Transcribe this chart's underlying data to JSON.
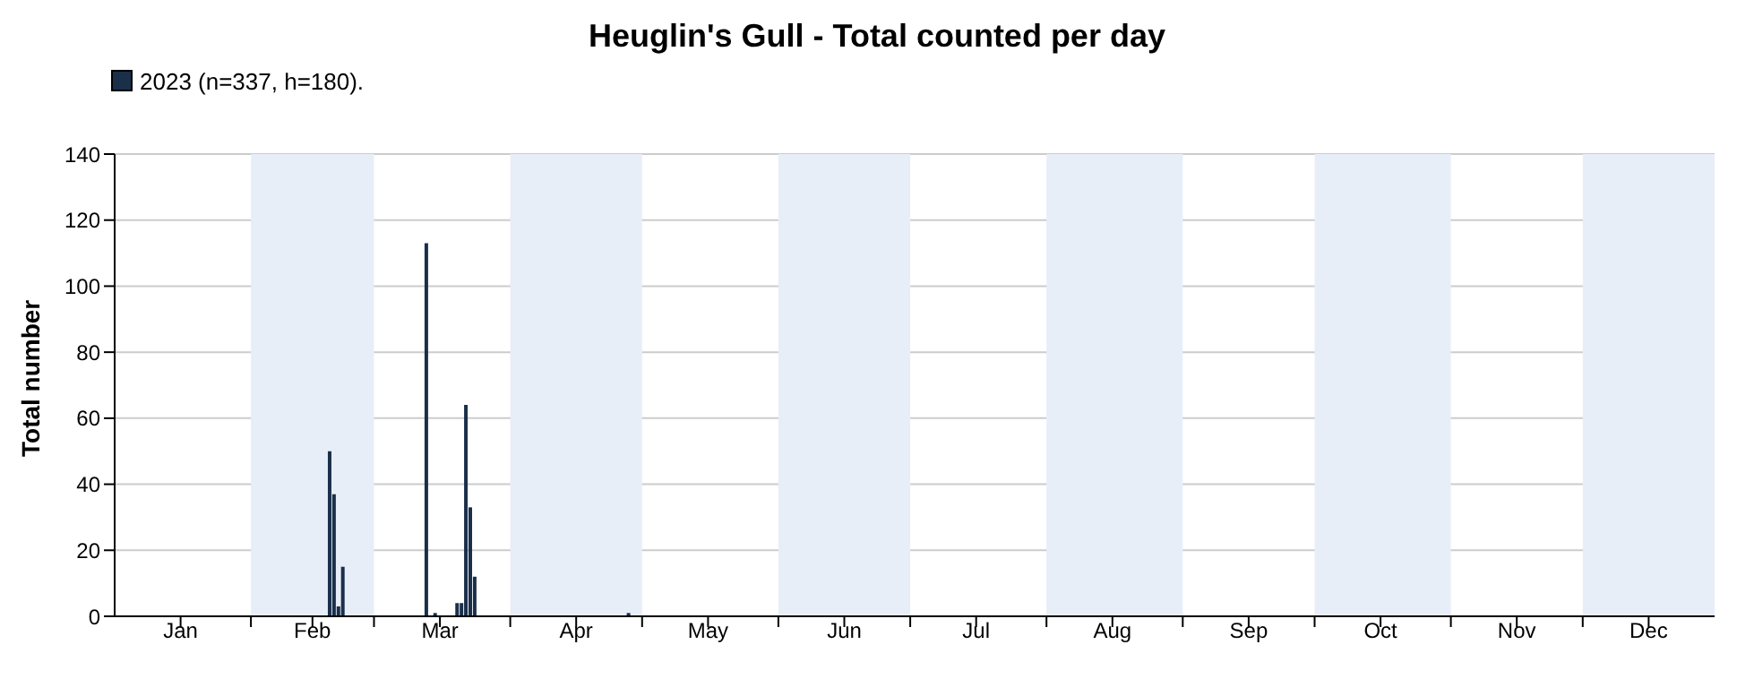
{
  "chart_data": {
    "type": "bar",
    "title": "Heuglin's Gull - Total counted per day",
    "ylabel": "Total number",
    "x": [
      "--02-19",
      "--02-20",
      "--02-21",
      "--02-22",
      "--03-13",
      "--03-15",
      "--03-20",
      "--03-21",
      "--03-22",
      "--03-23",
      "--03-24",
      "--04-28"
    ],
    "series": [
      {
        "name": "2023 (n=337, h=180).",
        "color": "#1a2f4a",
        "values": [
          50,
          37,
          3,
          15,
          113,
          1,
          4,
          4,
          64,
          33,
          12,
          1
        ]
      }
    ],
    "xlim": [
      "--01-01",
      "--12-31"
    ],
    "xticks": [
      {
        "value": "--01-16",
        "label": "Jan"
      },
      {
        "value": "--02-01",
        "label": null
      },
      {
        "value": "--02-15",
        "label": "Feb"
      },
      {
        "value": "--03-01",
        "label": null
      },
      {
        "value": "--03-16",
        "label": "Mar"
      },
      {
        "value": "--04-01",
        "label": null
      },
      {
        "value": "--04-16",
        "label": "Apr"
      },
      {
        "value": "--05-01",
        "label": null
      },
      {
        "value": "--05-16",
        "label": "May"
      },
      {
        "value": "--06-01",
        "label": null
      },
      {
        "value": "--06-16",
        "label": "Jun"
      },
      {
        "value": "--07-01",
        "label": null
      },
      {
        "value": "--07-16",
        "label": "Jul"
      },
      {
        "value": "--08-01",
        "label": null
      },
      {
        "value": "--08-16",
        "label": "Aug"
      },
      {
        "value": "--09-01",
        "label": null
      },
      {
        "value": "--09-16",
        "label": "Sep"
      },
      {
        "value": "--10-01",
        "label": null
      },
      {
        "value": "--10-16",
        "label": "Oct"
      },
      {
        "value": "--11-01",
        "label": null
      },
      {
        "value": "--11-16",
        "label": "Nov"
      },
      {
        "value": "--12-01",
        "label": null
      },
      {
        "value": "--12-16",
        "label": "Dec"
      }
    ],
    "ylim": [
      0,
      140
    ],
    "yticks": [
      0,
      20,
      40,
      60,
      80,
      100,
      120,
      140
    ],
    "bands": [
      {
        "axis": "x",
        "from": "--02-01",
        "to": "--03-01",
        "color": "#e8eef8"
      },
      {
        "axis": "x",
        "from": "--04-01",
        "to": "--05-01",
        "color": "#e8eef8"
      },
      {
        "axis": "x",
        "from": "--06-01",
        "to": "--07-01",
        "color": "#e8eef8"
      },
      {
        "axis": "x",
        "from": "--08-01",
        "to": "--09-01",
        "color": "#e8eef8"
      },
      {
        "axis": "x",
        "from": "--10-01",
        "to": "--11-01",
        "color": "#e8eef8"
      },
      {
        "axis": "x",
        "from": "--12-01",
        "to": "--12-31",
        "color": "#e8eef8"
      }
    ],
    "grid": "y",
    "legend": "top left"
  }
}
